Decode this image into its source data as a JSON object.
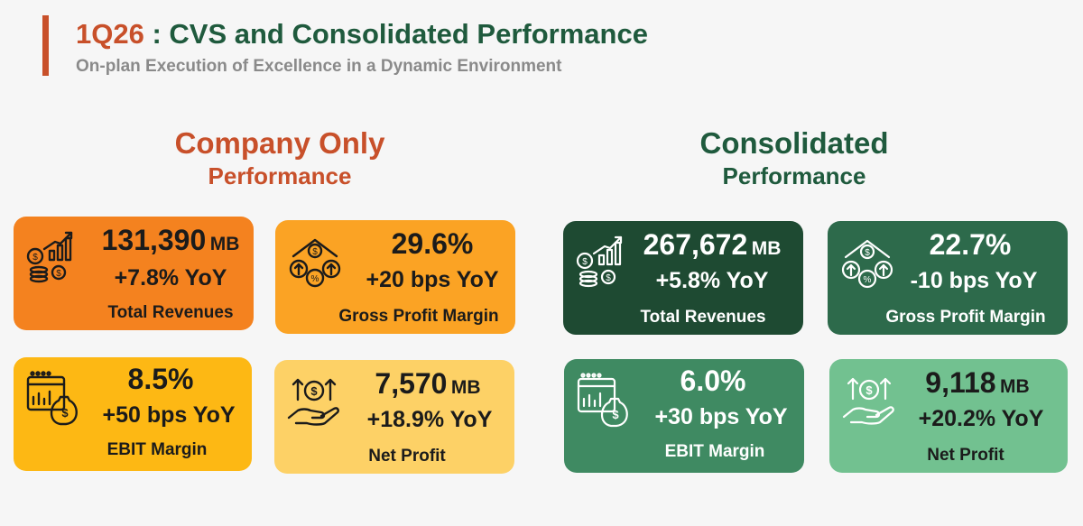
{
  "header": {
    "title_quarter": "1Q26",
    "title_rest": " : CVS and Consolidated Performance",
    "subtitle": "On-plan Execution of Excellence in a Dynamic Environment"
  },
  "company_only": {
    "heading_line1": "Company Only",
    "heading_line2": "Performance",
    "cards": {
      "revenue": {
        "value": "131,390",
        "unit": "MB",
        "yoy": "+7.8% YoY",
        "label": "Total Revenues",
        "icon": "revenue-growth-icon"
      },
      "gpm": {
        "value": "29.6%",
        "unit": "",
        "yoy": "+20 bps YoY",
        "label": "Gross Profit Margin",
        "icon": "gross-margin-icon"
      },
      "ebit": {
        "value": "8.5%",
        "unit": "",
        "yoy": "+50 bps YoY",
        "label": "EBIT Margin",
        "icon": "ebit-chart-icon"
      },
      "np": {
        "value": "7,570",
        "unit": "MB",
        "yoy": "+18.9% YoY",
        "label": "Net Profit",
        "icon": "net-profit-icon"
      }
    }
  },
  "consolidated": {
    "heading_line1": "Consolidated",
    "heading_line2": "Performance",
    "cards": {
      "revenue": {
        "value": "267,672",
        "unit": "MB",
        "yoy": "+5.8% YoY",
        "label": "Total Revenues",
        "icon": "revenue-growth-icon"
      },
      "gpm": {
        "value": "22.7%",
        "unit": "",
        "yoy": "-10 bps YoY",
        "label": "Gross Profit Margin",
        "icon": "gross-margin-icon"
      },
      "ebit": {
        "value": "6.0%",
        "unit": "",
        "yoy": "+30 bps YoY",
        "label": "EBIT Margin",
        "icon": "ebit-chart-icon"
      },
      "np": {
        "value": "9,118",
        "unit": "MB",
        "yoy": "+20.2% YoY",
        "label": "Net Profit",
        "icon": "net-profit-icon"
      }
    }
  },
  "colors": {
    "accent_orange": "#c8502a",
    "accent_green": "#1f5a3d"
  }
}
